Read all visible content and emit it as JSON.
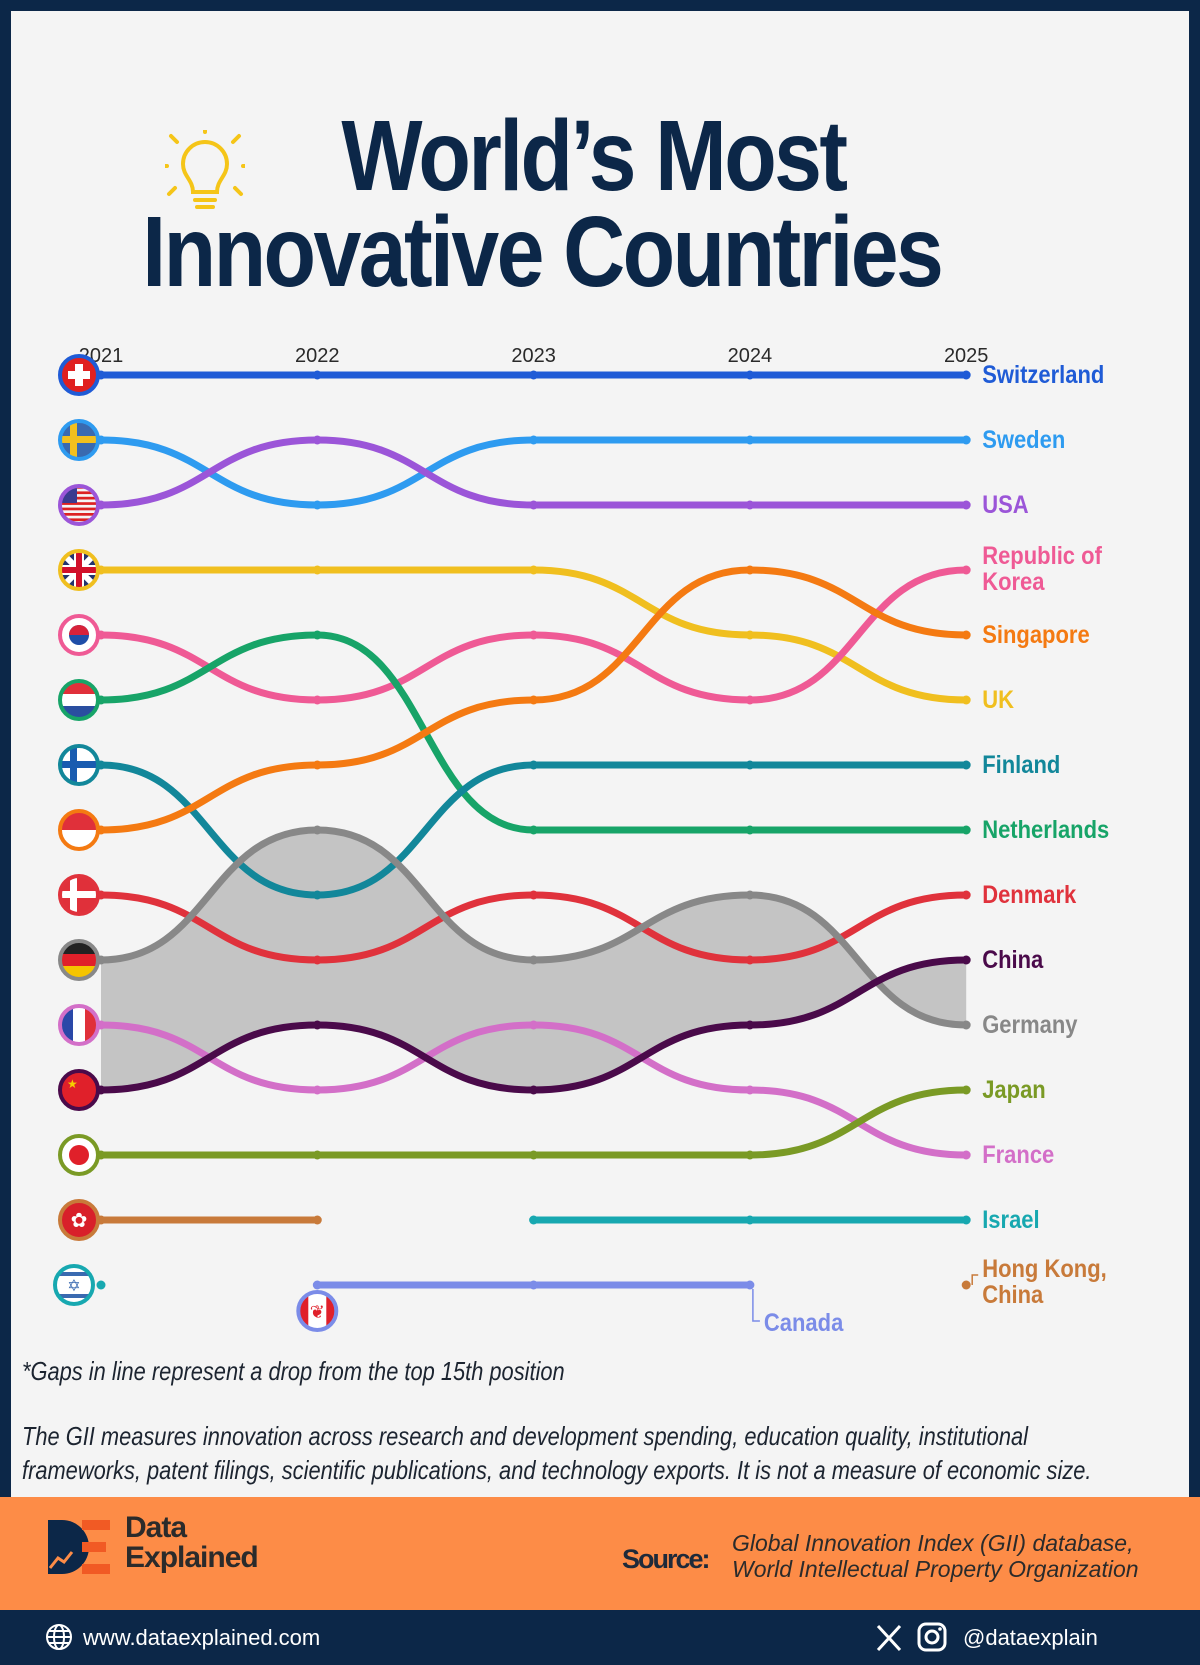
{
  "title_line1": "World’s Most",
  "title_line2": "Innovative Countries",
  "footnote": "*Gaps in line represent a drop from the top 15th position",
  "description_line1": "The GII measures innovation across research and development spending, education quality, institutional",
  "description_line2": "frameworks, patent filings, scientific publications, and technology exports. It is not a measure of economic size.",
  "brand": {
    "line1": "Data",
    "line2": "Explained"
  },
  "source": {
    "label": "Source:",
    "line1": "Global Innovation Index (GII) database,",
    "line2": "World Intellectual Property Organization"
  },
  "footer": {
    "website": "www.dataexplained.com",
    "handle": "@dataexplain",
    "icons": [
      "globe-icon",
      "x-icon",
      "instagram-icon"
    ]
  },
  "colors": {
    "navy": "#0c2748",
    "orange_band": "#fd8c47",
    "shaded_area": "#c4c4c4"
  },
  "chart_data": {
    "type": "line",
    "subtype": "bump",
    "x": [
      "2021",
      "2022",
      "2023",
      "2024",
      "2025"
    ],
    "y_axis": "rank (1 = top), inverted, 1-15",
    "shaded_between": [
      "Germany",
      "China"
    ],
    "series": [
      {
        "name": "Switzerland",
        "flag": "ch",
        "color": "#1f5bd6",
        "ranks": [
          1,
          1,
          1,
          1,
          1
        ]
      },
      {
        "name": "Sweden",
        "flag": "se",
        "color": "#2e9bf0",
        "ranks": [
          2,
          3,
          2,
          2,
          2
        ]
      },
      {
        "name": "USA",
        "flag": "us",
        "color": "#9b55d8",
        "ranks": [
          3,
          2,
          3,
          3,
          3
        ]
      },
      {
        "name": "UK",
        "flag": "gb",
        "color": "#f0bf1f",
        "ranks": [
          4,
          4,
          4,
          5,
          6
        ]
      },
      {
        "name": "Republic of Korea",
        "label_lines": [
          "Republic of",
          "Korea"
        ],
        "flag": "kr",
        "color": "#ef5a95",
        "ranks": [
          5,
          6,
          5,
          6,
          4
        ]
      },
      {
        "name": "Netherlands",
        "flag": "nl",
        "color": "#17a468",
        "ranks": [
          6,
          5,
          8,
          8,
          8
        ]
      },
      {
        "name": "Finland",
        "flag": "fi",
        "color": "#12879a",
        "ranks": [
          7,
          9,
          7,
          7,
          7
        ]
      },
      {
        "name": "Singapore",
        "flag": "sg",
        "color": "#f47a12",
        "ranks": [
          8,
          7,
          6,
          4,
          5
        ]
      },
      {
        "name": "Denmark",
        "flag": "dk",
        "color": "#e0323c",
        "ranks": [
          9,
          10,
          9,
          10,
          9
        ]
      },
      {
        "name": "Germany",
        "flag": "de",
        "color": "#888888",
        "ranks": [
          10,
          8,
          10,
          9,
          11
        ]
      },
      {
        "name": "France",
        "flag": "fr",
        "color": "#d36fc8",
        "ranks": [
          11,
          12,
          11,
          12,
          13
        ]
      },
      {
        "name": "China",
        "flag": "cn",
        "color": "#4a0a4a",
        "ranks": [
          12,
          11,
          12,
          11,
          10
        ]
      },
      {
        "name": "Japan",
        "flag": "jp",
        "color": "#7a9a25",
        "ranks": [
          13,
          13,
          13,
          13,
          12
        ]
      },
      {
        "name": "Hong Kong, China",
        "label_lines": [
          "Hong Kong,",
          "China"
        ],
        "flag": "hk",
        "color": "#c87a3a",
        "ranks": [
          14,
          14,
          null,
          null,
          15
        ]
      },
      {
        "name": "Israel",
        "flag": "il",
        "color": "#17a8b0",
        "ranks": [
          15,
          null,
          14,
          14,
          14
        ]
      },
      {
        "name": "Canada",
        "flag": "ca",
        "color": "#7b8ce8",
        "ranks": [
          null,
          15,
          15,
          15,
          null
        ]
      }
    ]
  }
}
